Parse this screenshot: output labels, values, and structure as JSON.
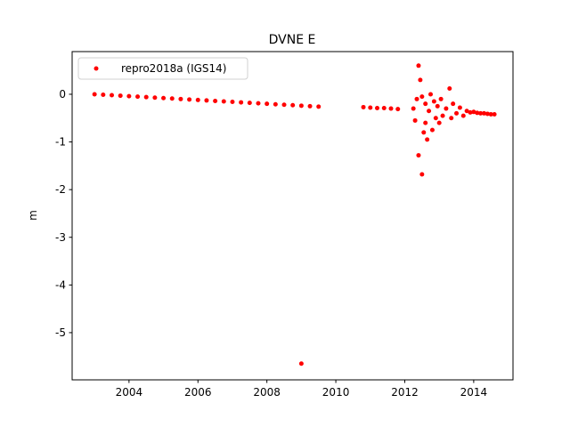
{
  "chart_data": {
    "type": "scatter",
    "title": "DVNE E",
    "y_label": "m",
    "series": [
      {
        "name": "repro2018a (IGS14)",
        "color": "#ff0000",
        "x": [
          2003,
          2003.25,
          2003.5,
          2003.75,
          2004,
          2004.25,
          2004.5,
          2004.75,
          2005,
          2005.25,
          2005.5,
          2005.75,
          2006,
          2006.25,
          2006.5,
          2006.75,
          2007,
          2007.25,
          2007.5,
          2007.75,
          2008,
          2008.25,
          2008.5,
          2008.75,
          2009,
          2009,
          2009.25,
          2009.5,
          2010.8,
          2011,
          2011.2,
          2011.4,
          2011.6,
          2011.8,
          2012.25,
          2012.3,
          2012.35,
          2012.4,
          2012.4,
          2012.45,
          2012.5,
          2012.5,
          2012.55,
          2012.6,
          2012.6,
          2012.65,
          2012.7,
          2012.75,
          2012.8,
          2012.85,
          2012.9,
          2012.95,
          2013,
          2013.05,
          2013.1,
          2013.2,
          2013.3,
          2013.35,
          2013.4,
          2013.5,
          2013.6,
          2013.7,
          2013.8,
          2013.9,
          2014,
          2014.1,
          2014.2,
          2014.3,
          2014.4,
          2014.5,
          2014.6
        ],
        "values": [
          0,
          -0.01,
          -0.02,
          -0.03,
          -0.04,
          -0.05,
          -0.06,
          -0.07,
          -0.08,
          -0.09,
          -0.1,
          -0.11,
          -0.12,
          -0.13,
          -0.14,
          -0.15,
          -0.16,
          -0.17,
          -0.18,
          -0.19,
          -0.2,
          -0.21,
          -0.22,
          -0.23,
          -0.24,
          -5.65,
          -0.25,
          -0.26,
          -0.27,
          -0.28,
          -0.29,
          -0.29,
          -0.3,
          -0.31,
          -0.3,
          -0.55,
          -0.1,
          0.6,
          -1.28,
          0.3,
          -1.68,
          -0.05,
          -0.8,
          -0.2,
          -0.6,
          -0.95,
          -0.35,
          0,
          -0.75,
          -0.15,
          -0.5,
          -0.25,
          -0.6,
          -0.1,
          -0.45,
          -0.3,
          0.12,
          -0.5,
          -0.2,
          -0.4,
          -0.28,
          -0.45,
          -0.35,
          -0.38,
          -0.37,
          -0.39,
          -0.4,
          -0.4,
          -0.41,
          -0.42,
          -0.42
        ]
      }
    ],
    "xlim": [
      2002.35,
      2015.14
    ],
    "xticks": [
      2004,
      2006,
      2008,
      2010,
      2012,
      2014
    ],
    "ylim": [
      -5.99,
      0.895
    ],
    "yticks": [
      0,
      -1,
      -2,
      -3,
      -4,
      -5
    ],
    "legend": "upper left"
  }
}
